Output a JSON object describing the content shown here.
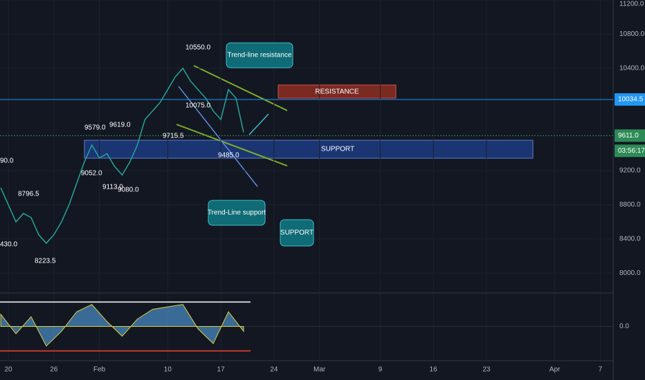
{
  "chart_data": [
    {
      "type": "line",
      "name_hint": null,
      "x": [
        -1,
        0,
        1,
        2,
        3,
        4,
        5,
        6,
        7,
        8,
        9,
        10,
        11,
        12,
        13,
        14,
        15,
        16,
        17,
        18,
        19,
        20,
        21,
        22,
        23,
        24,
        25,
        26,
        27,
        28,
        29,
        30,
        31
      ],
      "values": [
        9000,
        8800,
        8600,
        8700,
        8650,
        8450,
        8350,
        8450,
        8600,
        8800,
        9050,
        9300,
        9500,
        9350,
        9400,
        9250,
        9150,
        9300,
        9500,
        9800,
        9900,
        10000,
        10150,
        10300,
        10400,
        10250,
        10150,
        10050,
        9900,
        9800,
        10150,
        10050,
        9650
      ],
      "color": "#26a69a",
      "xlim": [
        -1.1,
        79.7
      ],
      "xticks": [
        {
          "value": 0,
          "label": "20"
        },
        {
          "value": 6,
          "label": "26"
        },
        {
          "value": 12,
          "label": "Feb"
        },
        {
          "value": 21,
          "label": "10"
        },
        {
          "value": 28,
          "label": "17"
        },
        {
          "value": 35,
          "label": "24"
        },
        {
          "value": 41,
          "label": "Mar"
        },
        {
          "value": 49,
          "label": "9"
        },
        {
          "value": 56,
          "label": "16"
        },
        {
          "value": 63,
          "label": "23"
        },
        {
          "value": 72,
          "label": "Apr"
        },
        {
          "value": 78,
          "label": "7"
        }
      ],
      "ylim": [
        7800,
        11200
      ],
      "yticks": [
        {
          "value": 8000,
          "label": "8000.0"
        },
        {
          "value": 8400,
          "label": "8400.0"
        },
        {
          "value": 8800,
          "label": "8800.0"
        },
        {
          "value": 9200,
          "label": "9200.0"
        },
        {
          "value": 10400,
          "label": "10400.0"
        },
        {
          "value": 10800,
          "label": "10800.0"
        },
        {
          "value": 11200,
          "label": "11200.0"
        }
      ],
      "price_lines": [
        {
          "value": 10034.5,
          "label": "10034.5",
          "color": "#2196f3"
        },
        {
          "value": 9611,
          "label": "9611.0",
          "color": "#2e8b57"
        }
      ],
      "countdown": "03:56:17",
      "annotations": [
        "10550.0",
        "10075.0",
        "9579.0",
        "9619.0",
        "9715.5",
        "9485.0",
        "9052.0",
        "9113.0",
        "9080.0",
        "8796.5",
        "8223.5",
        "90.0",
        "430.0"
      ],
      "zones": [
        "RESISTANCE",
        "SUPPORT"
      ],
      "callouts": [
        "Trend-line resistance",
        "Trend-Line support",
        "SUPPORT"
      ]
    },
    {
      "type": "area",
      "x": [
        -1,
        1,
        3,
        5,
        7,
        9,
        11,
        13,
        15,
        17,
        19,
        21,
        23,
        25,
        27,
        29,
        31
      ],
      "values": [
        0.5,
        -0.3,
        0.4,
        -0.8,
        -0.2,
        0.6,
        0.9,
        0.2,
        -0.4,
        0.3,
        0.7,
        0.8,
        0.9,
        -0.1,
        -0.7,
        0.6,
        -0.2
      ],
      "color": "#4a90c8",
      "ylim": [
        -1.2,
        1.2
      ],
      "yticks": [
        {
          "value": 0,
          "label": "0.0"
        }
      ]
    }
  ]
}
